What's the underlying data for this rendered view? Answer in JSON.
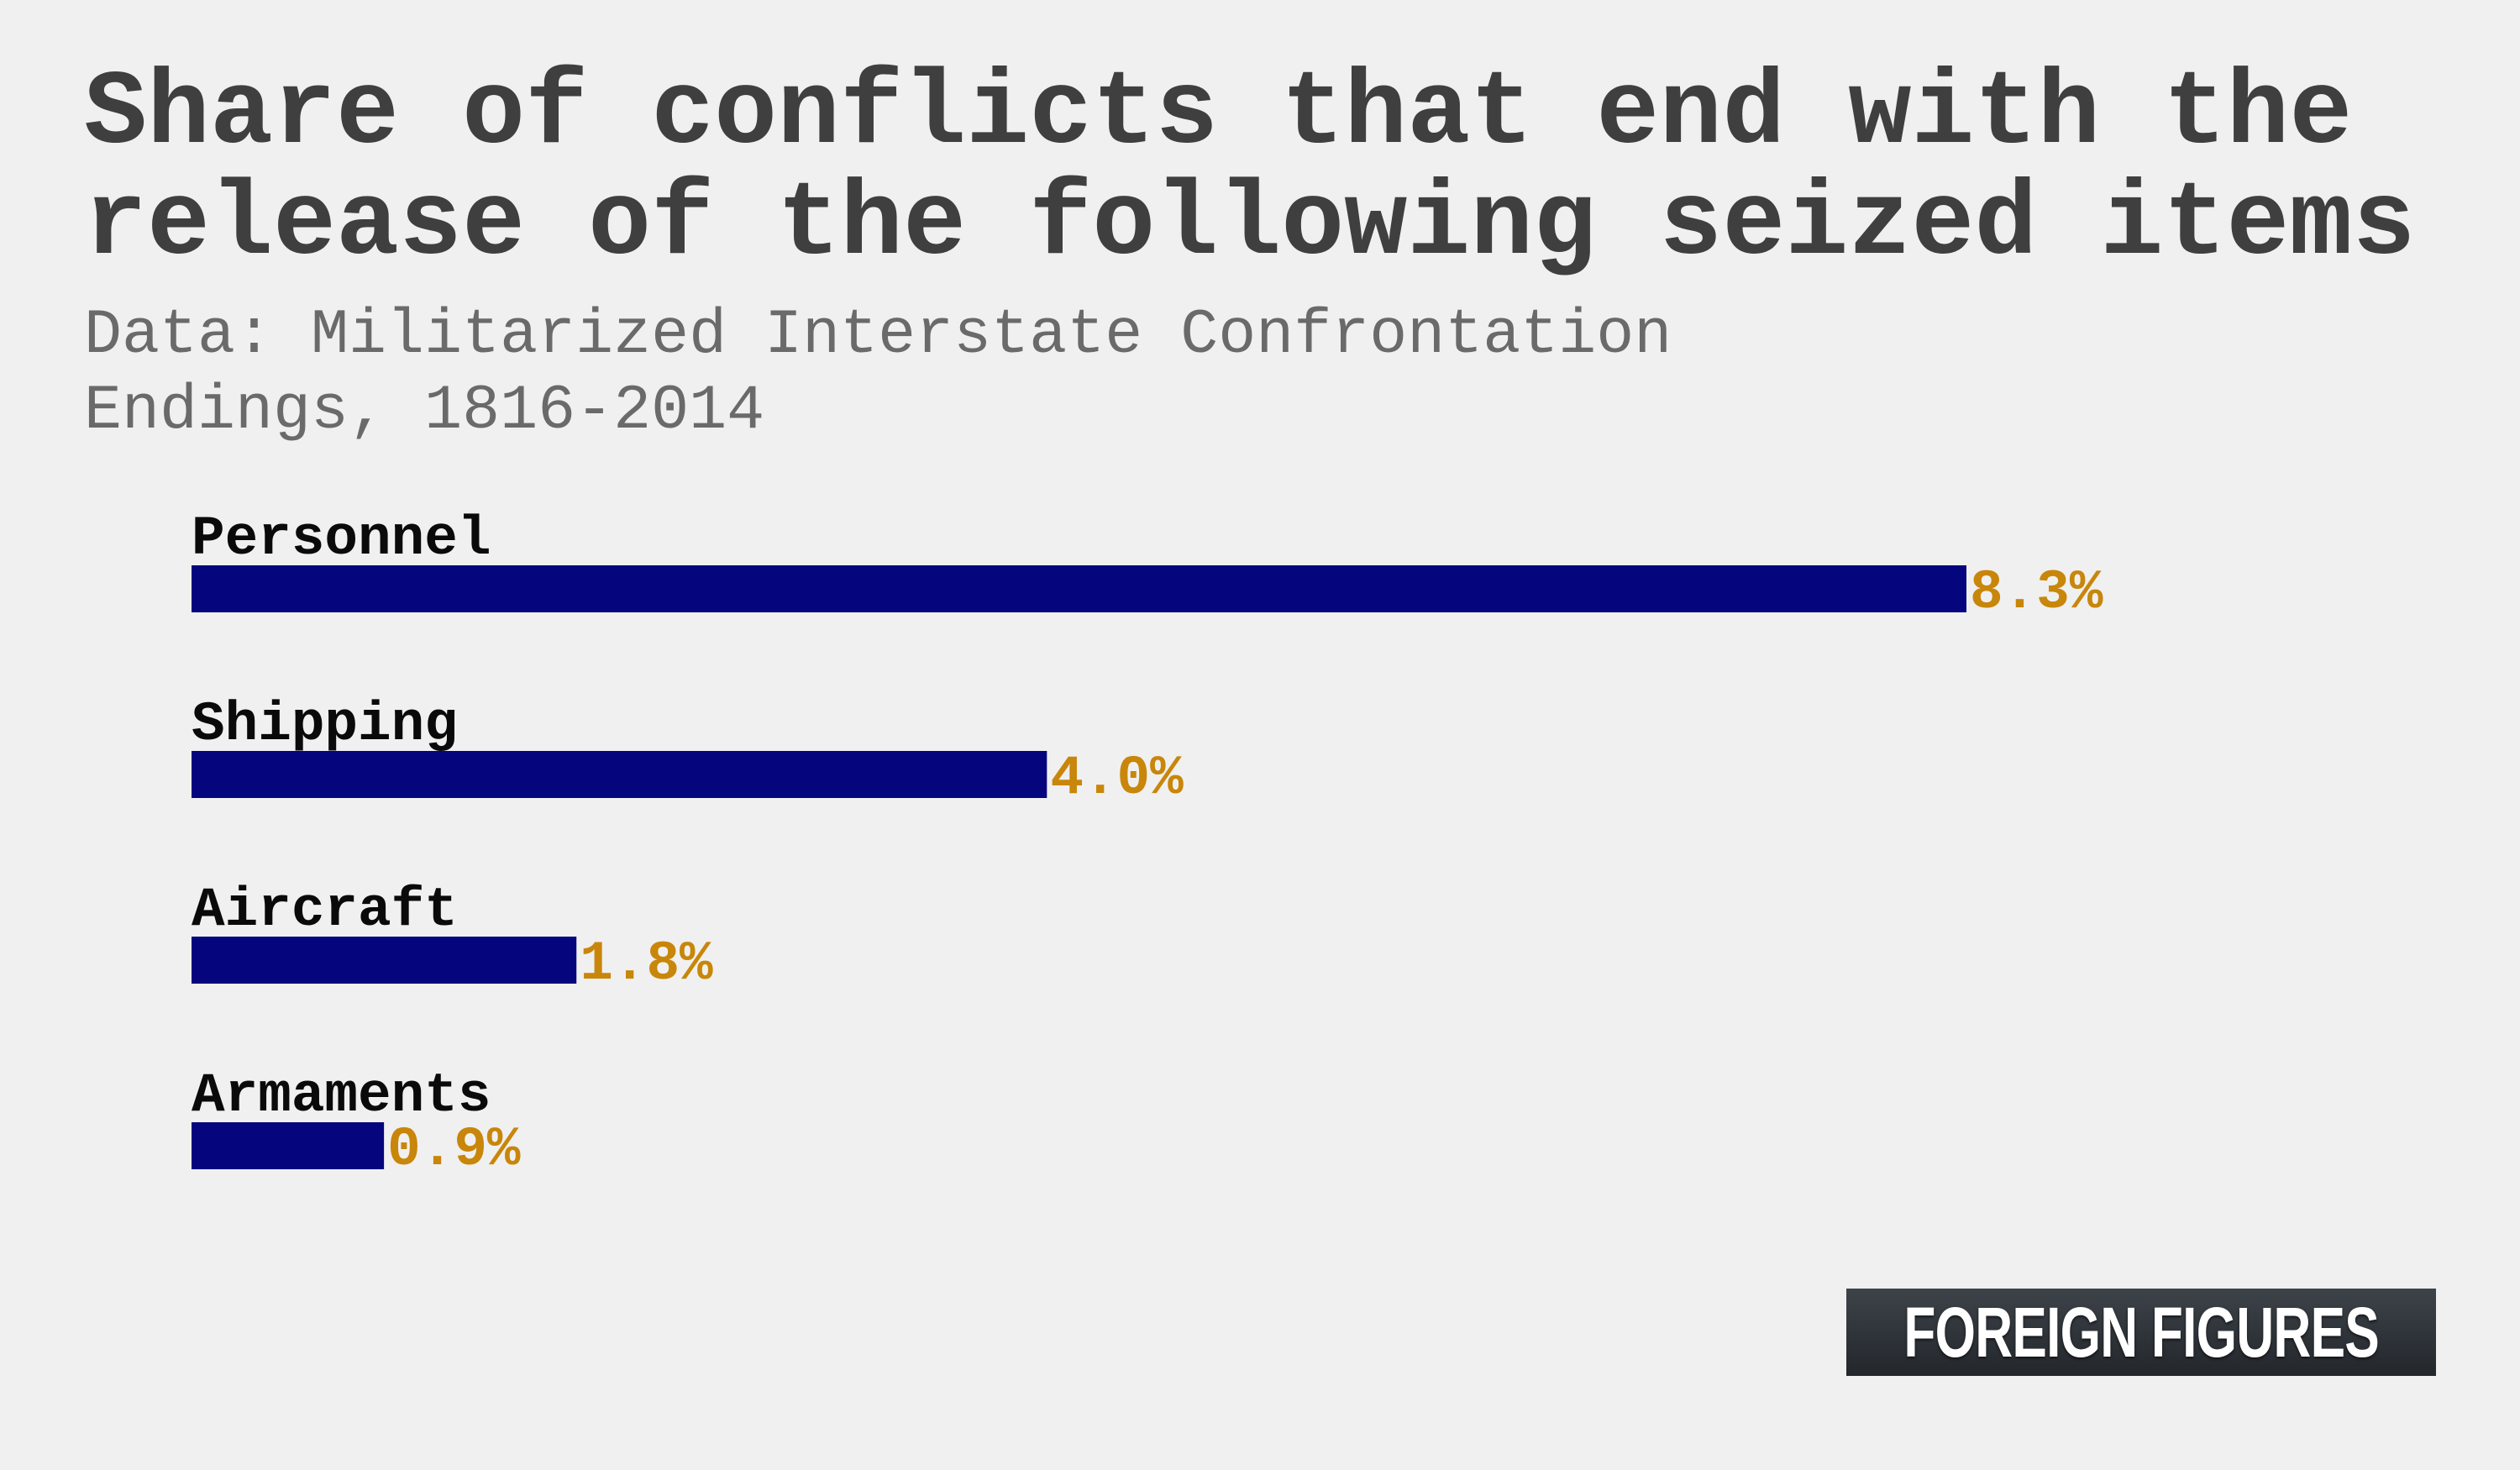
{
  "title": "Share of conflicts that end with the\nrelease of the following seized items",
  "subtitle": "Data: Militarized Interstate Confrontation\nEndings, 1816-2014",
  "brand": "FOREIGN FIGURES",
  "colors": {
    "bar": "#05057e",
    "value_label": "#c8860a",
    "category_label": "#0a0a0a",
    "title": "#3f3f3f",
    "subtitle": "#6a6a6a",
    "background": "#f0f0f0"
  },
  "chart_data": {
    "type": "bar",
    "orientation": "horizontal",
    "categories": [
      "Personnel",
      "Shipping",
      "Aircraft",
      "Armaments"
    ],
    "values": [
      8.3,
      4.0,
      1.8,
      0.9
    ],
    "value_labels": [
      "8.3%",
      "4.0%",
      "1.8%",
      "0.9%"
    ],
    "title": "Share of conflicts that end with the\nrelease of the following seized items",
    "subtitle": "Data: Militarized Interstate Confrontation\nEndings, 1816-2014",
    "xlabel": "",
    "ylabel": "",
    "grid": false,
    "legend": "none"
  }
}
